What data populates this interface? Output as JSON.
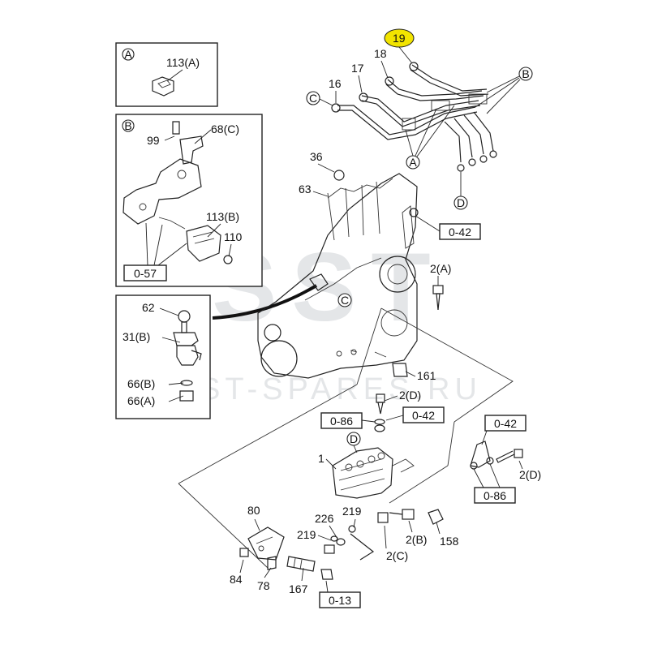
{
  "watermark": {
    "logo": "SST",
    "site": "ST-SPARES.RU"
  },
  "highlight_color": "#f2e400",
  "insets": {
    "A": {
      "letter": "A",
      "parts": [
        "113(A)"
      ]
    },
    "B": {
      "letter": "B",
      "parts": [
        "99",
        "68(C)",
        "113(B)",
        "110"
      ],
      "ref": "0-57"
    },
    "C": {
      "parts": [
        "62",
        "31(B)",
        "66(B)",
        "66(A)"
      ]
    }
  },
  "callouts": {
    "p19": "19",
    "p18": "18",
    "p17": "17",
    "p16": "16",
    "p36": "36",
    "p63": "63",
    "p2a": "2(A)",
    "p161": "161",
    "p2d_1": "2(D)",
    "p2d_2": "2(D)",
    "p1": "1",
    "p219_1": "219",
    "p219_2": "219",
    "p226": "226",
    "p2b": "2(B)",
    "p2c": "2(C)",
    "p158": "158",
    "p80": "80",
    "p84": "84",
    "p78": "78",
    "p167": "167"
  },
  "letters": {
    "A": "A",
    "B": "B",
    "C": "C",
    "D": "D"
  },
  "refs": {
    "r042_1": "0-42",
    "r042_2": "0-42",
    "r042_3": "0-42",
    "r086_1": "0-86",
    "r086_2": "0-86",
    "r013": "0-13"
  }
}
